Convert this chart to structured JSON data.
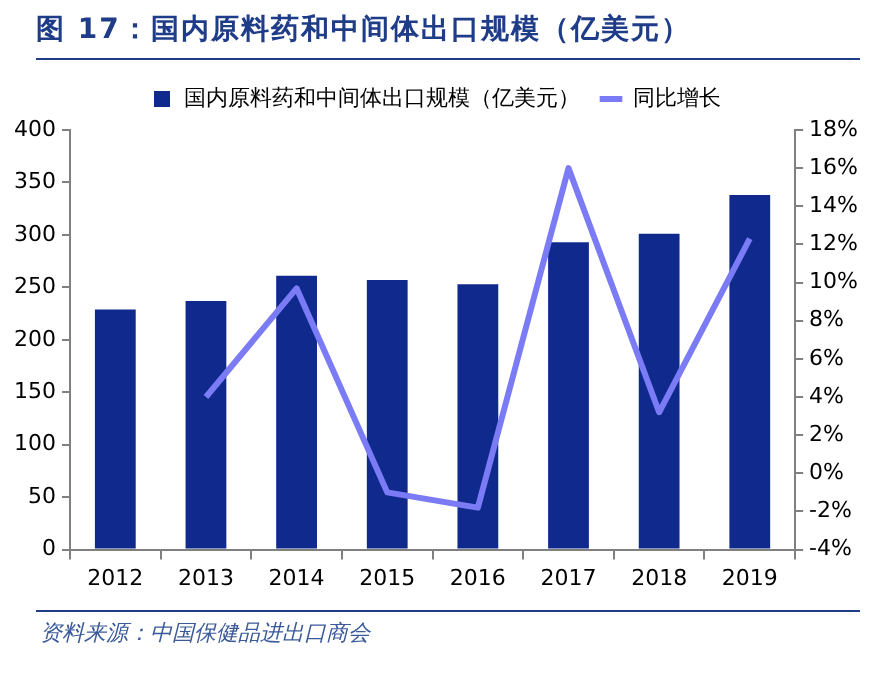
{
  "chart_data": {
    "type": "bar",
    "title": "图 17：国内原料药和中间体出口规模（亿美元）",
    "categories": [
      "2012",
      "2013",
      "2014",
      "2015",
      "2016",
      "2017",
      "2018",
      "2019"
    ],
    "series": [
      {
        "name": "国内原料药和中间体出口规模（亿美元）",
        "color": "#0f2a8c",
        "values": [
          229,
          237,
          261,
          257,
          253,
          293,
          301,
          338
        ]
      },
      {
        "name": "同比增长",
        "type": "line",
        "axis": "y2",
        "color": "#7b7bf5",
        "values": [
          null,
          4.0,
          9.7,
          -1.0,
          -1.8,
          16.0,
          3.2,
          12.3
        ]
      }
    ],
    "ylim": [
      0,
      400
    ],
    "yticks": [
      0,
      50,
      100,
      150,
      200,
      250,
      300,
      350,
      400
    ],
    "y2lim": [
      -4,
      18
    ],
    "y2ticks": [
      {
        "value": -4,
        "label": "-4%"
      },
      {
        "value": -2,
        "label": "-2%"
      },
      {
        "value": 0,
        "label": "0%"
      },
      {
        "value": 2,
        "label": "2%"
      },
      {
        "value": 4,
        "label": "4%"
      },
      {
        "value": 6,
        "label": "6%"
      },
      {
        "value": 8,
        "label": "8%"
      },
      {
        "value": 10,
        "label": "10%"
      },
      {
        "value": 12,
        "label": "12%"
      },
      {
        "value": 14,
        "label": "14%"
      },
      {
        "value": 16,
        "label": "16%"
      },
      {
        "value": 18,
        "label": "18%"
      }
    ],
    "grid": false,
    "legend": "top",
    "marker": "none",
    "line_style": "solid",
    "annotations": [
      "资料来源：中国保健品进出口商会"
    ]
  }
}
